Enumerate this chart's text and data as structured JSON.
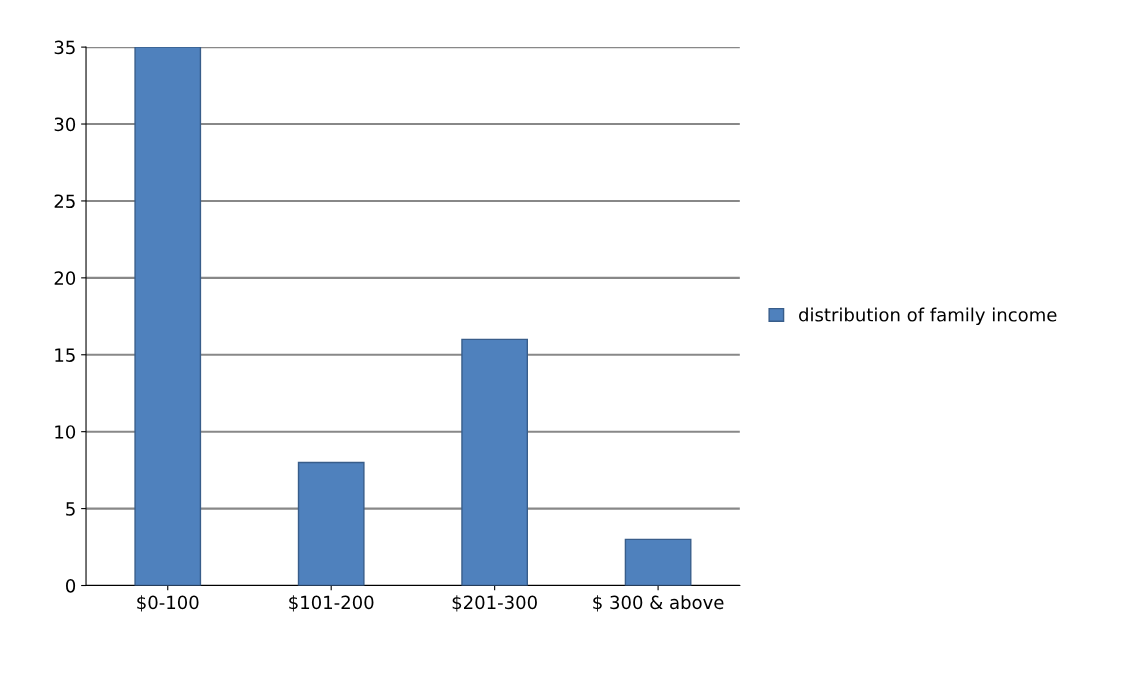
{
  "chart_data": {
    "type": "bar",
    "categories": [
      "$0-100",
      "$101-200",
      "$201-300",
      "$ 300 & above"
    ],
    "series": [
      {
        "name": "distribution of family income",
        "color": "#4f81bd",
        "values": [
          35,
          8,
          16,
          3
        ]
      }
    ],
    "ylim": [
      0,
      35
    ],
    "yticks": [
      0,
      5,
      10,
      15,
      20,
      25,
      30,
      35
    ],
    "grid": "y",
    "legend": "right"
  }
}
